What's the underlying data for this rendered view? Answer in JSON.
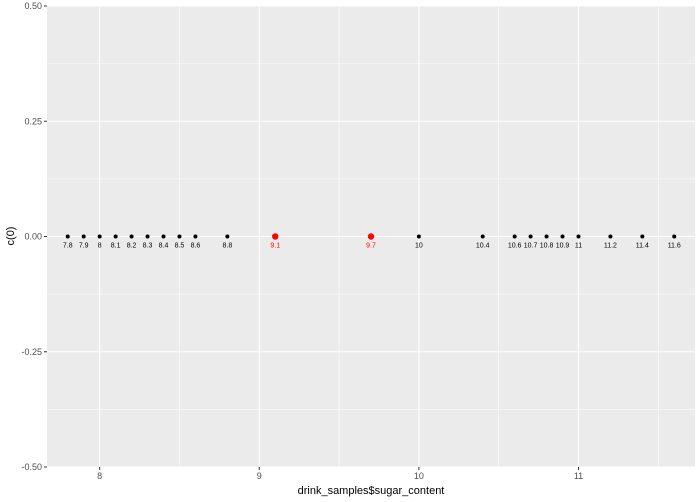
{
  "chart_data": {
    "type": "scatter",
    "xlabel": "drink_samples$sugar_content",
    "ylabel": "c(0)",
    "xlim": [
      7.67,
      11.73
    ],
    "ylim": [
      -0.5,
      0.5
    ],
    "x_ticks": [
      8,
      9,
      10,
      11
    ],
    "y_ticks": [
      -0.5,
      -0.25,
      0.0,
      0.25,
      0.5
    ],
    "x_tick_labels": [
      "8",
      "9",
      "10",
      "11"
    ],
    "y_tick_labels": [
      "-0.50",
      "-0.25",
      "0.00",
      "0.25",
      "0.50"
    ],
    "grid": true,
    "colors": {
      "panel": "#ebebeb",
      "grid": "#ffffff",
      "point": "#000000",
      "highlight": "#ff0000"
    },
    "points": [
      {
        "x": 7.8,
        "y": 0,
        "label": "7.8",
        "highlight": false
      },
      {
        "x": 7.9,
        "y": 0,
        "label": "7.9",
        "highlight": false
      },
      {
        "x": 8.0,
        "y": 0,
        "label": "8",
        "highlight": false
      },
      {
        "x": 8.1,
        "y": 0,
        "label": "8.1",
        "highlight": false
      },
      {
        "x": 8.2,
        "y": 0,
        "label": "8.2",
        "highlight": false
      },
      {
        "x": 8.3,
        "y": 0,
        "label": "8.3",
        "highlight": false
      },
      {
        "x": 8.4,
        "y": 0,
        "label": "8.4",
        "highlight": false
      },
      {
        "x": 8.5,
        "y": 0,
        "label": "8.5",
        "highlight": false
      },
      {
        "x": 8.6,
        "y": 0,
        "label": "8.6",
        "highlight": false
      },
      {
        "x": 8.8,
        "y": 0,
        "label": "8.8",
        "highlight": false
      },
      {
        "x": 9.1,
        "y": 0,
        "label": "9.1",
        "highlight": true
      },
      {
        "x": 9.7,
        "y": 0,
        "label": "9.7",
        "highlight": true
      },
      {
        "x": 10.0,
        "y": 0,
        "label": "10",
        "highlight": false
      },
      {
        "x": 10.4,
        "y": 0,
        "label": "10.4",
        "highlight": false
      },
      {
        "x": 10.6,
        "y": 0,
        "label": "10.6",
        "highlight": false
      },
      {
        "x": 10.7,
        "y": 0,
        "label": "10.7",
        "highlight": false
      },
      {
        "x": 10.8,
        "y": 0,
        "label": "10.8",
        "highlight": false
      },
      {
        "x": 10.9,
        "y": 0,
        "label": "10.9",
        "highlight": false
      },
      {
        "x": 11.0,
        "y": 0,
        "label": "11",
        "highlight": false
      },
      {
        "x": 11.2,
        "y": 0,
        "label": "11.2",
        "highlight": false
      },
      {
        "x": 11.4,
        "y": 0,
        "label": "11.4",
        "highlight": false
      },
      {
        "x": 11.6,
        "y": 0,
        "label": "11.6",
        "highlight": false
      }
    ]
  }
}
